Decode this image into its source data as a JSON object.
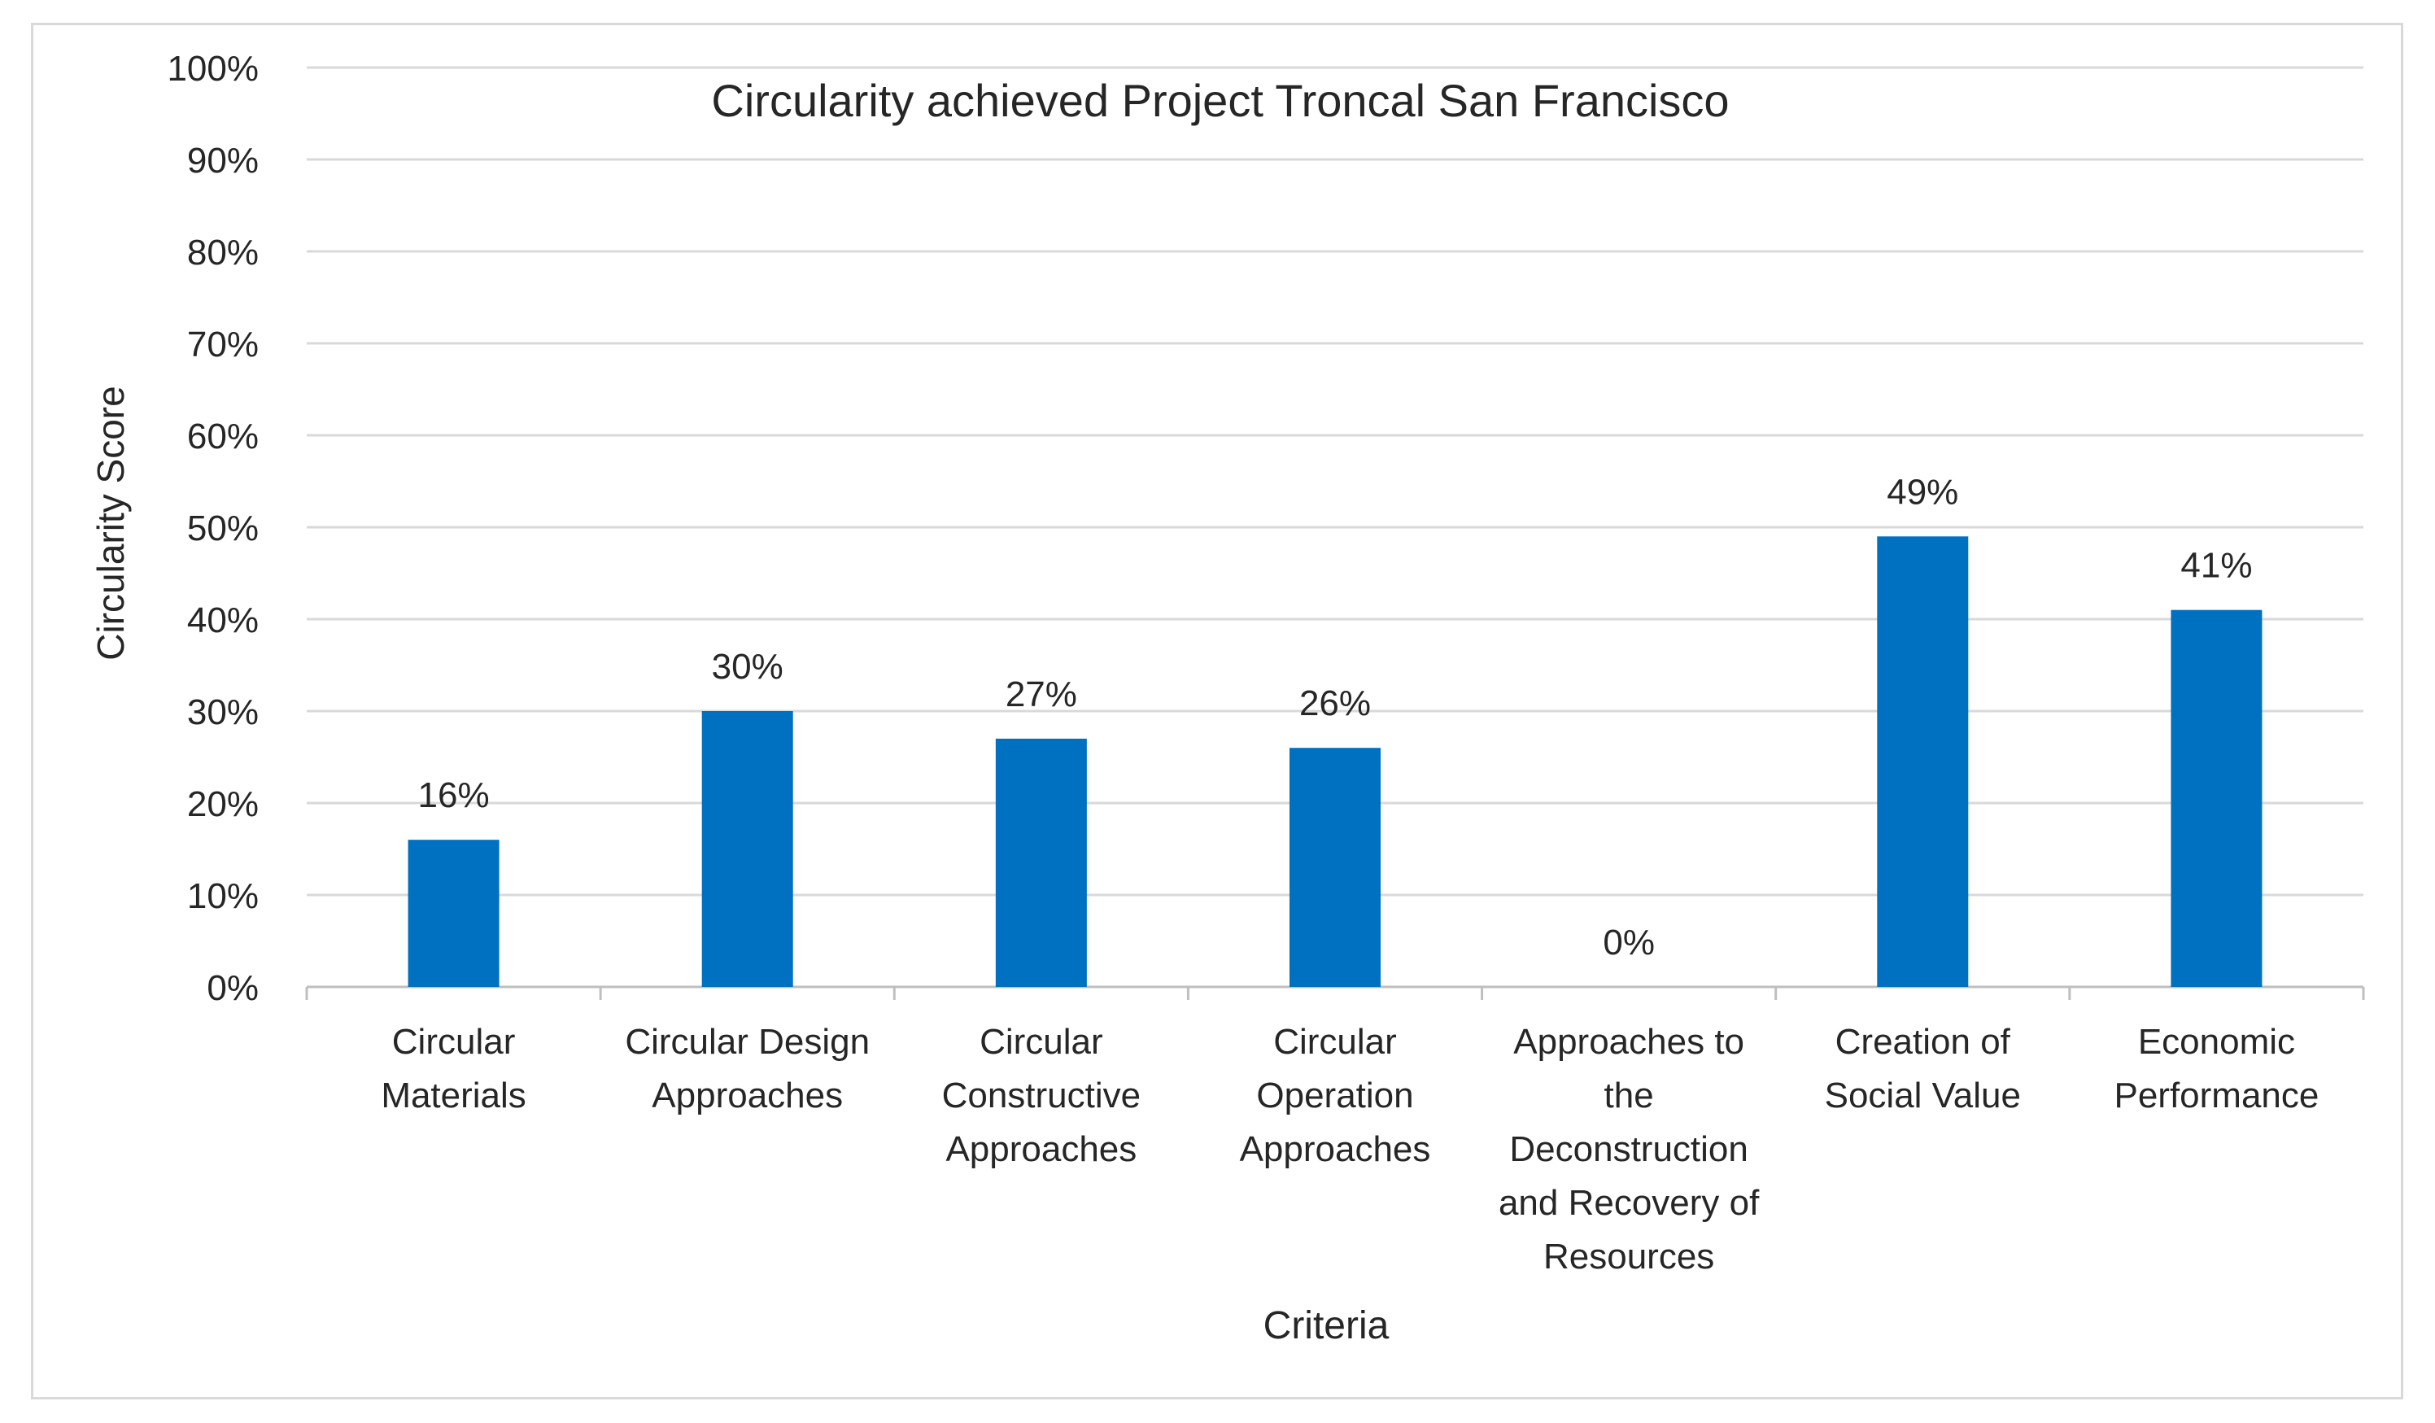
{
  "chart_data": {
    "type": "bar",
    "title": "Circularity achieved Project  Troncal San Francisco",
    "xlabel": "Criteria",
    "ylabel": "Circularity Score",
    "ylim": [
      0,
      100
    ],
    "y_ticks": [
      "0%",
      "10%",
      "20%",
      "30%",
      "40%",
      "50%",
      "60%",
      "70%",
      "80%",
      "90%",
      "100%"
    ],
    "grid": true,
    "bar_color": "#0070c0",
    "categories": [
      [
        "Circular",
        "Materials"
      ],
      [
        "Circular Design",
        "Approaches"
      ],
      [
        "Circular",
        "Constructive",
        "Approaches"
      ],
      [
        "Circular",
        "Operation",
        "Approaches"
      ],
      [
        "Approaches to",
        "the",
        "Deconstruction",
        "and Recovery of",
        "Resources"
      ],
      [
        "Creation of",
        "Social Value"
      ],
      [
        "Economic",
        "Performance"
      ]
    ],
    "values": [
      16,
      30,
      27,
      26,
      0,
      49,
      41
    ],
    "data_labels": [
      "16%",
      "30%",
      "27%",
      "26%",
      "0%",
      "49%",
      "41%"
    ]
  }
}
